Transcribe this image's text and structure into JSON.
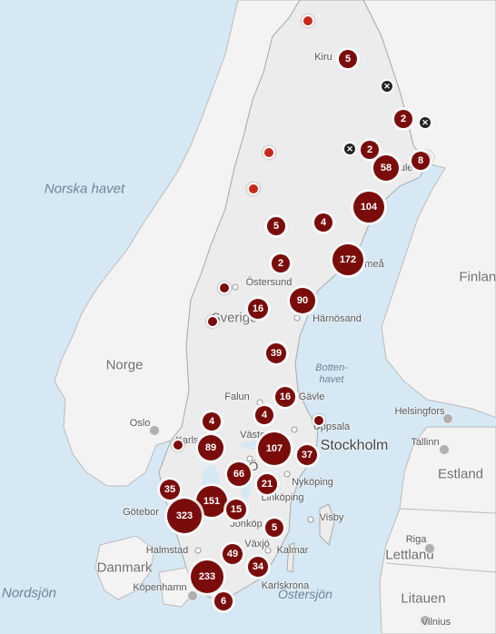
{
  "sea_labels": [
    {
      "id": "norska-havet",
      "text": "Norska havet"
    },
    {
      "id": "nordsjon",
      "text": "Nordsjön"
    },
    {
      "id": "bottenhavet",
      "text": "Botten-\nhavet"
    },
    {
      "id": "ostersjon",
      "text": "Östersjön"
    }
  ],
  "country_labels": [
    {
      "id": "sverige",
      "text": "Sverige"
    },
    {
      "id": "norge",
      "text": "Norge"
    },
    {
      "id": "finland",
      "text": "Finland"
    },
    {
      "id": "estland",
      "text": "Estland"
    },
    {
      "id": "lettland",
      "text": "Lettland"
    },
    {
      "id": "litauen",
      "text": "Litauen"
    },
    {
      "id": "danmark",
      "text": "Danmark"
    }
  ],
  "city_labels": [
    {
      "id": "kiruna",
      "text": "Kiru"
    },
    {
      "id": "lulea",
      "text": "Lule"
    },
    {
      "id": "umea",
      "text": "meå"
    },
    {
      "id": "ostersund",
      "text": "Östersund"
    },
    {
      "id": "harnosand",
      "text": "Härnösand"
    },
    {
      "id": "falun",
      "text": "Falun"
    },
    {
      "id": "gavle",
      "text": "Gävle"
    },
    {
      "id": "uppsala",
      "text": "Uppsala"
    },
    {
      "id": "vasteras",
      "text": "Väster"
    },
    {
      "id": "karlstad",
      "text": "Karls"
    },
    {
      "id": "stockholm",
      "text": "Stockholm"
    },
    {
      "id": "nykoping",
      "text": "Nyköping"
    },
    {
      "id": "linkoping",
      "text": "Linköping"
    },
    {
      "id": "jonkoping",
      "text": "Jönköp"
    },
    {
      "id": "goteborg",
      "text": "Götebor"
    },
    {
      "id": "orebro",
      "text": "Ö"
    },
    {
      "id": "vaxjo",
      "text": "Växjö"
    },
    {
      "id": "kalmar",
      "text": "Kalmar"
    },
    {
      "id": "visby",
      "text": "Visby"
    },
    {
      "id": "halmstad",
      "text": "Halmstad"
    },
    {
      "id": "karlskrona",
      "text": "Karlskrona"
    },
    {
      "id": "kobenhavn",
      "text": "Köpenhamn"
    },
    {
      "id": "oslo",
      "text": "Oslo"
    },
    {
      "id": "helsingfors",
      "text": "Helsingfors"
    },
    {
      "id": "tallinn",
      "text": "Tallinn"
    },
    {
      "id": "riga",
      "text": "Riga"
    },
    {
      "id": "vilnius",
      "text": "Vilnius"
    }
  ],
  "clusters": [
    {
      "id": "c5a",
      "count": "5"
    },
    {
      "id": "c2a",
      "count": "2"
    },
    {
      "id": "c2b",
      "count": "2"
    },
    {
      "id": "c58",
      "count": "58"
    },
    {
      "id": "c8",
      "count": "8"
    },
    {
      "id": "c104",
      "count": "104"
    },
    {
      "id": "c5b",
      "count": "5"
    },
    {
      "id": "c4a",
      "count": "4"
    },
    {
      "id": "c2c",
      "count": "2"
    },
    {
      "id": "c172",
      "count": "172"
    },
    {
      "id": "c90",
      "count": "90"
    },
    {
      "id": "c16a",
      "count": "16"
    },
    {
      "id": "c39",
      "count": "39"
    },
    {
      "id": "c16b",
      "count": "16"
    },
    {
      "id": "c4b",
      "count": "4"
    },
    {
      "id": "c4c",
      "count": "4"
    },
    {
      "id": "c89",
      "count": "89"
    },
    {
      "id": "c107",
      "count": "107"
    },
    {
      "id": "c37",
      "count": "37"
    },
    {
      "id": "c66",
      "count": "66"
    },
    {
      "id": "c21",
      "count": "21"
    },
    {
      "id": "c35",
      "count": "35"
    },
    {
      "id": "c151",
      "count": "151"
    },
    {
      "id": "c15",
      "count": "15"
    },
    {
      "id": "c323",
      "count": "323"
    },
    {
      "id": "c5c",
      "count": "5"
    },
    {
      "id": "c49",
      "count": "49"
    },
    {
      "id": "c34",
      "count": "34"
    },
    {
      "id": "c233",
      "count": "233"
    },
    {
      "id": "c6",
      "count": "6"
    }
  ],
  "colors": {
    "cluster": "#7a0c0c",
    "pin": "#c8281b",
    "water": "#d6e8f4",
    "land": "#f2f2f2",
    "sweden": "#eeeeee"
  }
}
